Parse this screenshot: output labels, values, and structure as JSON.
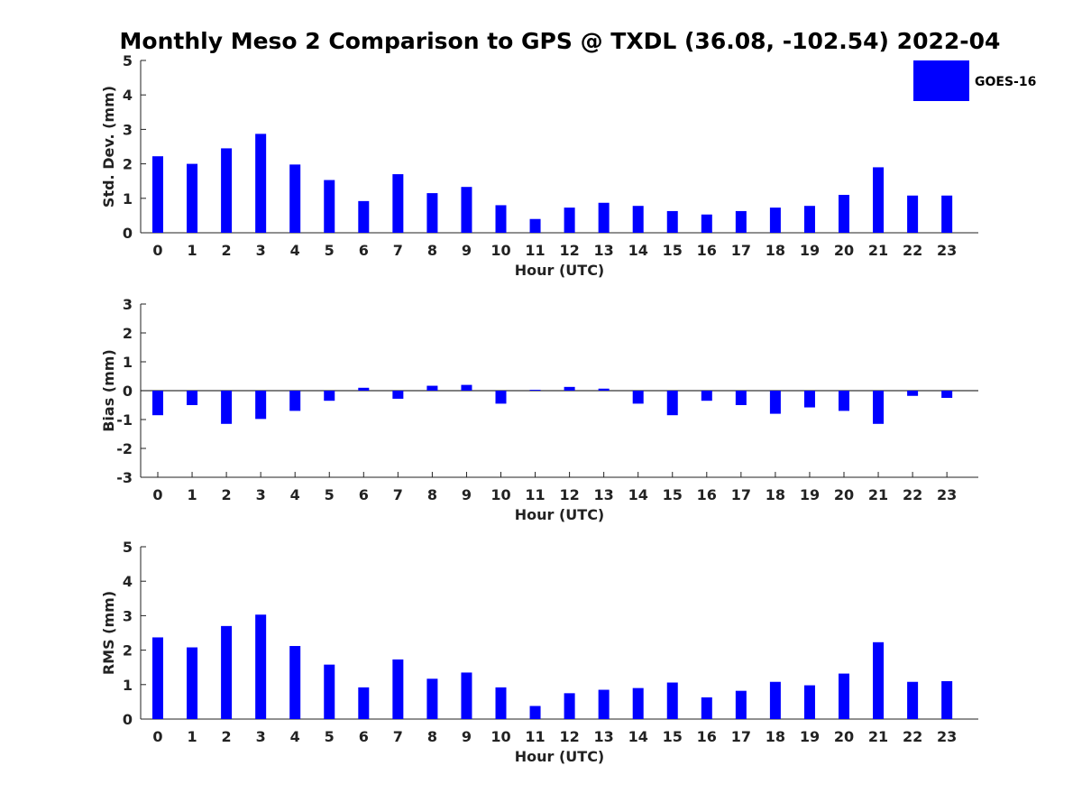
{
  "chart_data": {
    "type": "bar",
    "title": "Monthly Meso 2 Comparison to GPS @ TXDL (36.08, -102.54) 2022-04",
    "legend": {
      "placement": "top-right",
      "entries": [
        {
          "name": "GOES-16",
          "color": "#0000ff"
        }
      ]
    },
    "categories": [
      "0",
      "1",
      "2",
      "3",
      "4",
      "5",
      "6",
      "7",
      "8",
      "9",
      "10",
      "11",
      "12",
      "13",
      "14",
      "15",
      "16",
      "17",
      "18",
      "19",
      "20",
      "21",
      "22",
      "23"
    ],
    "panels": [
      {
        "id": "std",
        "xlabel": "Hour (UTC)",
        "ylabel": "Std. Dev. (mm)",
        "ylim": [
          0,
          5
        ],
        "yticks": [
          0,
          1,
          2,
          3,
          4,
          5
        ],
        "grid": false,
        "series": [
          {
            "name": "GOES-16",
            "color": "#0000ff",
            "values": [
              2.22,
              2.0,
              2.45,
              2.87,
              1.98,
              1.53,
              0.92,
              1.7,
              1.15,
              1.33,
              0.8,
              0.4,
              0.73,
              0.87,
              0.78,
              0.63,
              0.53,
              0.63,
              0.73,
              0.78,
              1.1,
              1.9,
              1.08,
              1.08
            ]
          }
        ]
      },
      {
        "id": "bias",
        "xlabel": "Hour (UTC)",
        "ylabel": "Bias (mm)",
        "ylim": [
          -3,
          3
        ],
        "yticks": [
          -3,
          -2,
          -1,
          0,
          1,
          2,
          3
        ],
        "grid": false,
        "series": [
          {
            "name": "GOES-16",
            "color": "#0000ff",
            "values": [
              -0.85,
              -0.5,
              -1.15,
              -0.98,
              -0.7,
              -0.35,
              0.1,
              -0.28,
              0.17,
              0.2,
              -0.45,
              0.03,
              0.13,
              0.07,
              -0.45,
              -0.85,
              -0.35,
              -0.5,
              -0.8,
              -0.58,
              -0.7,
              -1.15,
              -0.18,
              -0.25
            ]
          }
        ]
      },
      {
        "id": "rms",
        "xlabel": "Hour (UTC)",
        "ylabel": "RMS (mm)",
        "ylim": [
          0,
          5
        ],
        "yticks": [
          0,
          1,
          2,
          3,
          4,
          5
        ],
        "grid": false,
        "series": [
          {
            "name": "GOES-16",
            "color": "#0000ff",
            "values": [
              2.37,
              2.08,
              2.7,
              3.03,
              2.12,
              1.58,
              0.92,
              1.73,
              1.17,
              1.35,
              0.92,
              0.38,
              0.75,
              0.85,
              0.9,
              1.06,
              0.63,
              0.82,
              1.08,
              0.98,
              1.32,
              2.23,
              1.08,
              1.1
            ]
          }
        ]
      }
    ]
  }
}
